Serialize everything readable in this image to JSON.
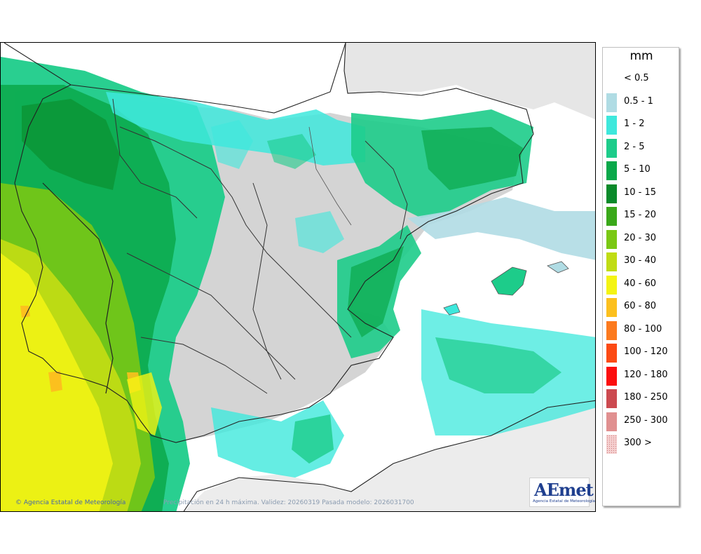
{
  "legend": {
    "unit": "mm",
    "entries": [
      {
        "label": "< 0.5",
        "color": "#ffffff"
      },
      {
        "label": "0.5 - 1",
        "color": "#b0dce4"
      },
      {
        "label": "1 - 2",
        "color": "#3ee8dc"
      },
      {
        "label": "2 - 5",
        "color": "#1dcc8a"
      },
      {
        "label": "5 - 10",
        "color": "#0aa84a"
      },
      {
        "label": "10 - 15",
        "color": "#0a8a2a"
      },
      {
        "label": "15 - 20",
        "color": "#3aa81a"
      },
      {
        "label": "20 - 30",
        "color": "#7ac814"
      },
      {
        "label": "30 - 40",
        "color": "#c0dc14"
      },
      {
        "label": "40 - 60",
        "color": "#f4f414"
      },
      {
        "label": "60 - 80",
        "color": "#fcc01e"
      },
      {
        "label": "80 - 100",
        "color": "#fc7a1e"
      },
      {
        "label": "100 - 120",
        "color": "#fc4a14"
      },
      {
        "label": "120 - 180",
        "color": "#fc0e0e"
      },
      {
        "label": "180 - 250",
        "color": "#cc4a50"
      },
      {
        "label": "250 - 300",
        "color": "#e09090"
      },
      {
        "label": "300 >",
        "color": "#f5d0d0"
      }
    ]
  },
  "footer": {
    "credit": "© Agencia Estatal de Meteorología",
    "validity": "Precipitación en 24 h máxima. Validez: 20260319 Pasada modelo: 2026031700"
  },
  "logo": {
    "word": "AEmet",
    "subtitle": "Agencia Estatal de Meteorología"
  }
}
